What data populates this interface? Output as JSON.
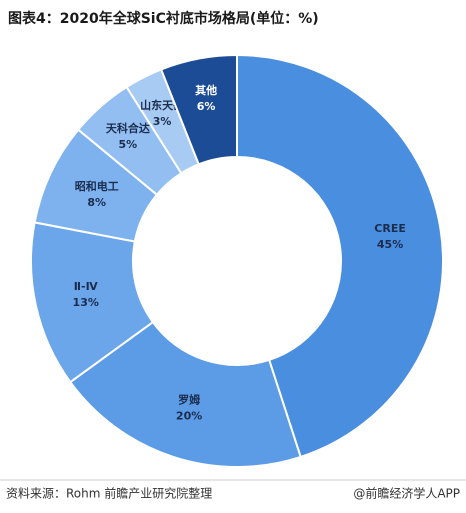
{
  "chart_data": {
    "type": "donut",
    "title": "图表4：2020年全球SiC衬底市场格局(单位：%)",
    "categories": [
      "CREE",
      "罗姆",
      "Ⅱ-Ⅳ",
      "昭和电工",
      "天科合达",
      "山东天岳",
      "其他"
    ],
    "values": [
      45,
      20,
      13,
      8,
      5,
      3,
      6
    ],
    "value_labels": [
      "45%",
      "20%",
      "13%",
      "8%",
      "5%",
      "3%",
      "6%"
    ],
    "colors": [
      "#4a8ee0",
      "#5c9be6",
      "#6ca6ea",
      "#7eb2ee",
      "#92bef1",
      "#a8cbf3",
      "#1d4c96"
    ],
    "source": "资料来源：Rohm 前瞻产业研究院整理",
    "credit": "@前瞻经济学人APP"
  }
}
